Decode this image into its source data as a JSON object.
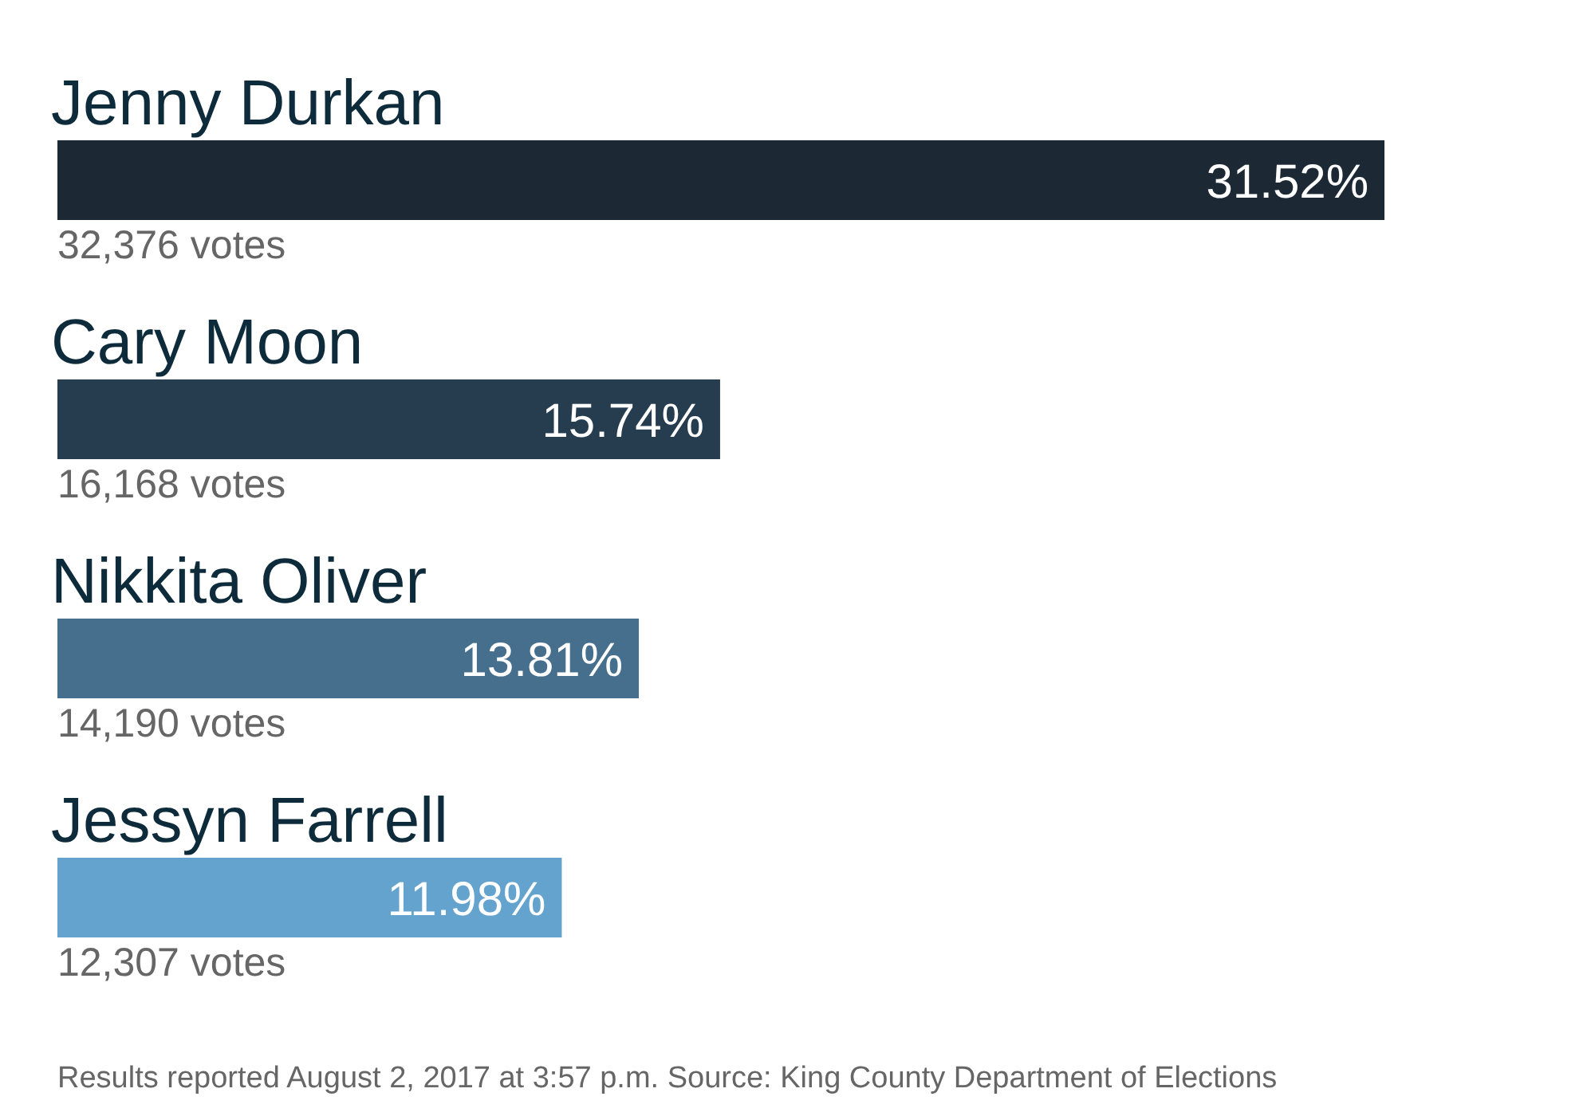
{
  "chart_data": {
    "type": "bar",
    "orientation": "horizontal",
    "categories": [
      "Jenny Durkan",
      "Cary Moon",
      "Nikkita Oliver",
      "Jessyn Farrell"
    ],
    "values": [
      31.52,
      15.74,
      13.81,
      11.98
    ],
    "colors": [
      "#1c2935",
      "#263d4f",
      "#466f8e",
      "#65a3cf"
    ],
    "value_labels": [
      "31.52%",
      "15.74%",
      "13.81%",
      "11.98%"
    ],
    "annotations": [
      "32,376 votes",
      "16,168 votes",
      "14,190 votes",
      "12,307 votes",
      "Results reported August 2, 2017 at 3:57 p.m. Source: King County Department of Elections"
    ]
  }
}
